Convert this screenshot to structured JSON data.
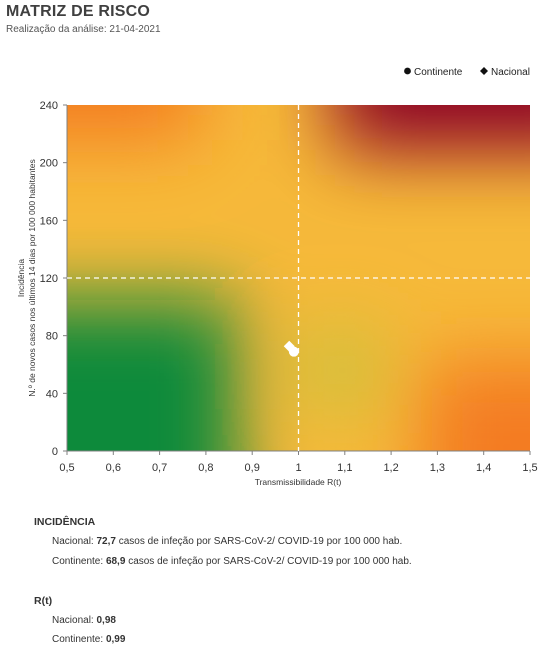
{
  "header": {
    "title": "MATRIZ DE RISCO",
    "subtitle": "Realização da análise: 21-04-2021"
  },
  "colors": {
    "green": "#0b8a3a",
    "yellow": "#f6b93a",
    "orange": "#f47b20",
    "dark_red": "#8c0028",
    "threshold_line": "#ffffff",
    "points": "#ffffff"
  },
  "chart_data": {
    "type": "scatter",
    "xlabel": "Transmissibilidade  R(t)",
    "ylabel_line1": "Incidência",
    "ylabel_line2": "N.º de novos  casos nos últimos 14 dias por 100 000 habitantes",
    "xlim": [
      0.5,
      1.5
    ],
    "ylim": [
      0,
      240
    ],
    "x_ticks": [
      "0,5",
      "0,6",
      "0,7",
      "0,8",
      "0,9",
      "1",
      "1,1",
      "1,2",
      "1,3",
      "1,4",
      "1,5"
    ],
    "y_ticks": [
      "0",
      "40",
      "80",
      "120",
      "160",
      "200",
      "240"
    ],
    "x_tick_values": [
      0.5,
      0.6,
      0.7,
      0.8,
      0.9,
      1.0,
      1.1,
      1.2,
      1.3,
      1.4,
      1.5
    ],
    "y_tick_values": [
      0,
      40,
      80,
      120,
      160,
      200,
      240
    ],
    "thresholds": {
      "x": 1.0,
      "y": 120
    },
    "legend_position": "top-right",
    "series": [
      {
        "name": "Continente",
        "marker": "circle",
        "x": 0.99,
        "y": 68.9
      },
      {
        "name": "Nacional",
        "marker": "diamond",
        "x": 0.98,
        "y": 72.7
      }
    ]
  },
  "summary": {
    "incidence": {
      "heading": "INCIDÊNCIA",
      "nacional_label": "Nacional:",
      "nacional_value": "72,7",
      "nacional_text": "casos de infeção por SARS-CoV-2/ COVID-19 por 100 000 hab.",
      "continente_label": "Continente:",
      "continente_value": "68,9",
      "continente_text": "casos de infeção por SARS-CoV-2/ COVID-19 por 100 000 hab."
    },
    "rt": {
      "heading": "R(t)",
      "nacional_label": "Nacional:",
      "nacional_value": "0,98",
      "continente_label": "Continente:",
      "continente_value": "0,99"
    }
  }
}
